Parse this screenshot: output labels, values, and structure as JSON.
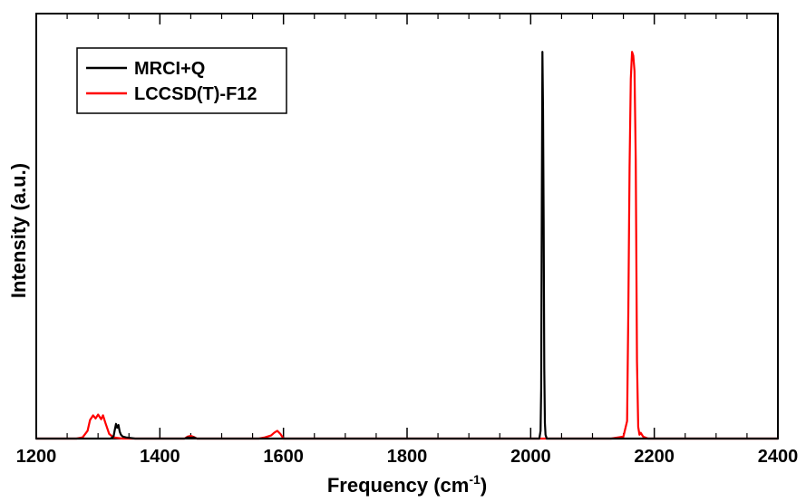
{
  "chart_data": {
    "type": "line",
    "title": "",
    "xlabel": "Frequency (cm",
    "xlabel_superscript": "-1",
    "xlabel_suffix": ")",
    "ylabel": "Intensity (a.u.)",
    "xlim": [
      1200,
      2400
    ],
    "ylim": [
      0,
      1.0
    ],
    "x_ticks": [
      1200,
      1400,
      1600,
      1800,
      2000,
      2200,
      2400
    ],
    "x_tick_labels": [
      "1200",
      "1400",
      "1600",
      "1800",
      "2000",
      "2200",
      "2400"
    ],
    "y_tick_labels": [],
    "grid": false,
    "legend_position": "top-left",
    "series": [
      {
        "name": "MRCI+Q",
        "color": "#000000",
        "x": [
          1200,
          1320,
          1325,
          1327,
          1329,
          1331,
          1333,
          1335,
          1337,
          1340,
          1345,
          1360,
          1440,
          1445,
          1450,
          1455,
          1460,
          2000,
          2014,
          2016,
          2017,
          2018,
          2019,
          2020,
          2021,
          2022,
          2023,
          2024,
          2026,
          2040,
          2400
        ],
        "y": [
          0,
          0,
          0.005,
          0.022,
          0.038,
          0.028,
          0.035,
          0.018,
          0.01,
          0.005,
          0.003,
          0,
          0,
          0.003,
          0.002,
          0.003,
          0,
          0,
          0,
          0.02,
          0.13,
          0.6,
          1.0,
          0.85,
          0.56,
          0.18,
          0.04,
          0.01,
          0,
          0,
          0
        ]
      },
      {
        "name": "LCCSD(T)-F12",
        "color": "#ff0000",
        "x": [
          1200,
          1265,
          1275,
          1283,
          1287,
          1292,
          1296,
          1300,
          1305,
          1308,
          1312,
          1318,
          1325,
          1340,
          1440,
          1445,
          1450,
          1455,
          1460,
          1560,
          1570,
          1580,
          1585,
          1590,
          1595,
          1600,
          2130,
          2150,
          2156,
          2158,
          2160,
          2162,
          2164,
          2166,
          2168,
          2170,
          2172,
          2174,
          2176,
          2178,
          2182,
          2190,
          2400
        ],
        "y": [
          0,
          0,
          0.003,
          0.02,
          0.048,
          0.06,
          0.052,
          0.062,
          0.05,
          0.06,
          0.04,
          0.012,
          0.003,
          0,
          0,
          0.005,
          0.007,
          0.004,
          0,
          0,
          0.003,
          0.008,
          0.015,
          0.02,
          0.012,
          0,
          0,
          0.005,
          0.045,
          0.33,
          0.7,
          0.93,
          1.0,
          0.99,
          0.95,
          0.72,
          0.2,
          0.03,
          0.01,
          0.015,
          0.005,
          0,
          0
        ]
      }
    ]
  }
}
